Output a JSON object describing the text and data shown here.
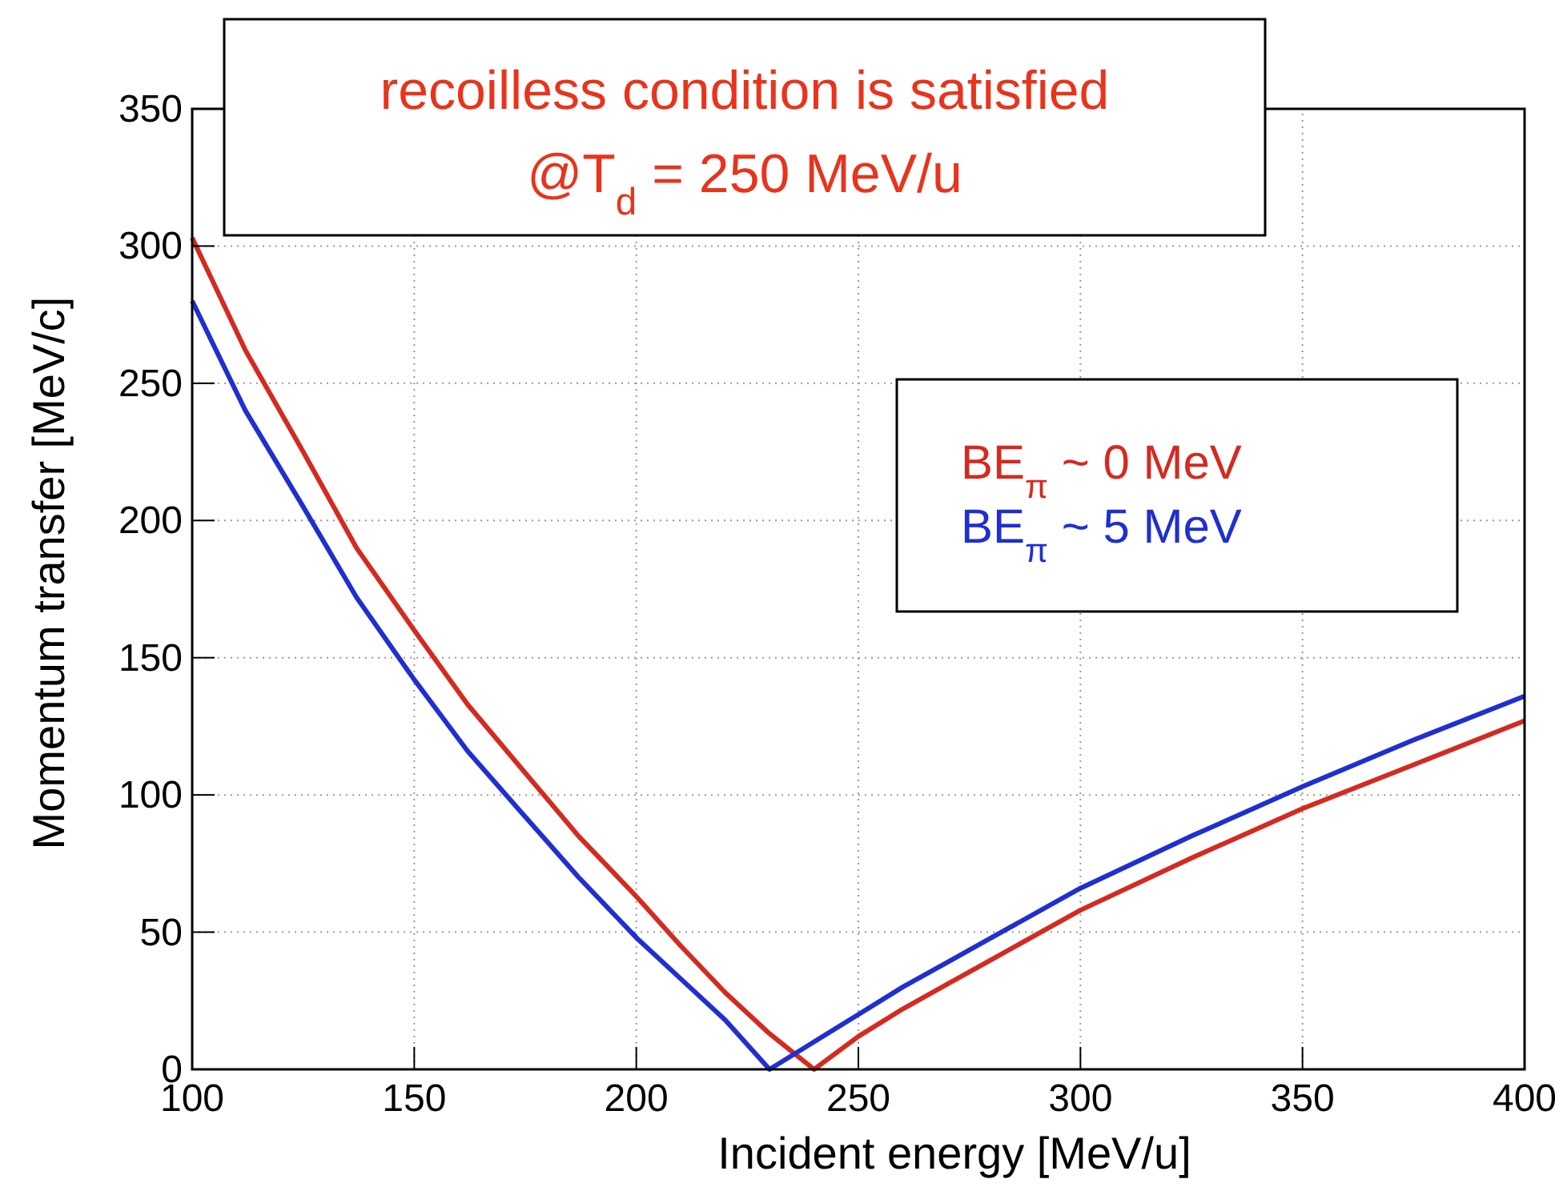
{
  "chart_data": {
    "type": "line",
    "title": "recoilless condition is satisfied",
    "subtitle": "@T$_{d}$ = 250 MeV/u",
    "xlabel": "Incident energy [MeV/u]",
    "ylabel": "Momentum transfer [MeV/c]",
    "xlim": [
      100,
      400
    ],
    "ylim": [
      0,
      350
    ],
    "xticks": [
      100,
      150,
      200,
      250,
      300,
      350,
      400
    ],
    "yticks": [
      0,
      50,
      100,
      150,
      200,
      250,
      300,
      350
    ],
    "grid": true,
    "legend": "right",
    "line_style": "solid",
    "marker": "none",
    "series": [
      {
        "name": "BE$_{π}$ ~ 0 MeV",
        "color": "#d42a20",
        "x": [
          100,
          112,
          125,
          137,
          150,
          162,
          175,
          187,
          200,
          210,
          220,
          230,
          240,
          250,
          260,
          270,
          280,
          300,
          325,
          350,
          375,
          400
        ],
        "values": [
          303,
          262,
          225,
          190,
          160,
          133,
          108,
          85,
          63,
          45,
          28,
          13,
          0,
          12,
          22,
          31,
          40,
          58,
          77,
          95,
          111,
          127
        ]
      },
      {
        "name": "BE$_{π}$ ~ 5 MeV",
        "color": "#1f2fd0",
        "x": [
          100,
          112,
          125,
          137,
          150,
          162,
          175,
          187,
          200,
          210,
          220,
          230,
          240,
          250,
          260,
          270,
          280,
          300,
          325,
          350,
          375,
          400
        ],
        "values": [
          280,
          240,
          205,
          172,
          142,
          116,
          92,
          70,
          48,
          33,
          18,
          0,
          10,
          20,
          30,
          39,
          48,
          66,
          85,
          103,
          120,
          136
        ]
      }
    ]
  }
}
